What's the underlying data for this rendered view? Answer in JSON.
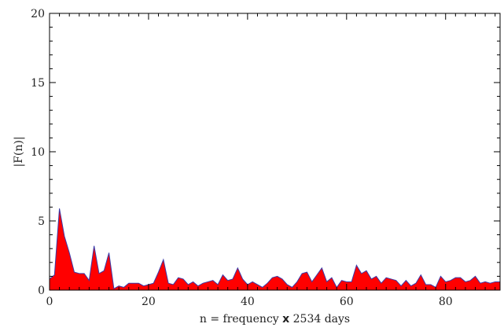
{
  "chart_data": {
    "type": "area",
    "title": "",
    "xlabel_parts": [
      "n = frequency ",
      "x",
      " 2534 days"
    ],
    "ylabel": "|F(n)|",
    "xlim": [
      0,
      91
    ],
    "ylim": [
      0,
      20
    ],
    "xticks": [
      0,
      20,
      40,
      60,
      80
    ],
    "yticks": [
      0,
      5,
      10,
      15,
      20
    ],
    "grid": false,
    "fill_color": "#ff0000",
    "line_color": "#3a3aa8",
    "series": [
      {
        "x": [
          0,
          1,
          2,
          3,
          4,
          5,
          6,
          7,
          8,
          9,
          10,
          11,
          12,
          13,
          14,
          15,
          16,
          17,
          18,
          19,
          20,
          21,
          22,
          23,
          24,
          25,
          26,
          27,
          28,
          29,
          30,
          31,
          32,
          33,
          34,
          35,
          36,
          37,
          38,
          39,
          40,
          41,
          42,
          43,
          44,
          45,
          46,
          47,
          48,
          49,
          50,
          51,
          52,
          53,
          54,
          55,
          56,
          57,
          58,
          59,
          60,
          61,
          62,
          63,
          64,
          65,
          66,
          67,
          68,
          69,
          70,
          71,
          72,
          73,
          74,
          75,
          76,
          77,
          78,
          79,
          80,
          81,
          82,
          83,
          84,
          85,
          86,
          87,
          88,
          89,
          90,
          91
        ],
        "values": [
          0.8,
          1.1,
          5.9,
          3.9,
          2.7,
          1.3,
          1.2,
          1.2,
          0.7,
          3.2,
          1.2,
          1.4,
          2.7,
          0.1,
          0.3,
          0.2,
          0.5,
          0.5,
          0.5,
          0.3,
          0.4,
          0.5,
          1.3,
          2.2,
          0.5,
          0.4,
          0.9,
          0.8,
          0.4,
          0.6,
          0.3,
          0.5,
          0.6,
          0.7,
          0.4,
          1.1,
          0.7,
          0.8,
          1.6,
          0.8,
          0.4,
          0.6,
          0.4,
          0.2,
          0.5,
          0.9,
          1.0,
          0.8,
          0.4,
          0.2,
          0.6,
          1.2,
          1.3,
          0.6,
          1.1,
          1.6,
          0.6,
          0.9,
          0.2,
          0.7,
          0.6,
          0.6,
          1.8,
          1.2,
          1.4,
          0.8,
          1.0,
          0.5,
          0.9,
          0.8,
          0.7,
          0.3,
          0.7,
          0.3,
          0.5,
          1.1,
          0.4,
          0.4,
          0.2,
          1.0,
          0.6,
          0.7,
          0.9,
          0.9,
          0.6,
          0.7,
          1.0,
          0.5,
          0.6,
          0.5,
          0.6,
          0.6
        ]
      }
    ]
  }
}
